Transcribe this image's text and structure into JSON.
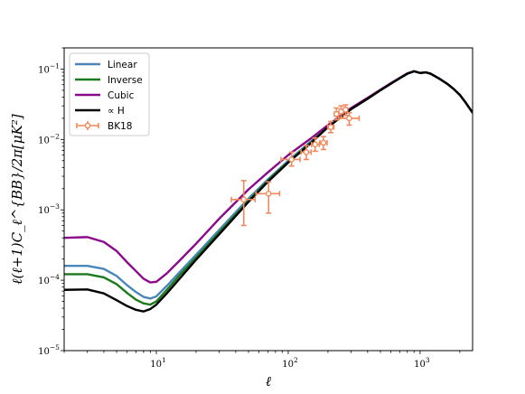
{
  "chart_data": {
    "type": "line",
    "title": "",
    "xlabel": "ℓ",
    "ylabel": "ℓ(ℓ+1)C_ℓ^{BB}/2π[μK²]",
    "xscale": "log",
    "yscale": "log",
    "xlim": [
      2,
      2500
    ],
    "ylim": [
      1e-05,
      0.2
    ],
    "grid": false,
    "legend_placement": "top-left",
    "x_ticks": [
      {
        "value": 10,
        "base": "10",
        "exp": "1"
      },
      {
        "value": 100,
        "base": "10",
        "exp": "2"
      },
      {
        "value": 1000,
        "base": "10",
        "exp": "3"
      }
    ],
    "y_ticks": [
      {
        "value": 1e-05,
        "base": "10",
        "exp": "−5"
      },
      {
        "value": 0.0001,
        "base": "10",
        "exp": "−4"
      },
      {
        "value": 0.001,
        "base": "10",
        "exp": "−3"
      },
      {
        "value": 0.01,
        "base": "10",
        "exp": "−2"
      },
      {
        "value": 0.1,
        "base": "10",
        "exp": "−1"
      }
    ],
    "series": [
      {
        "name": "Linear",
        "color": "#4a86b9",
        "points": [
          [
            2,
            0.00016
          ],
          [
            3,
            0.00016
          ],
          [
            4,
            0.000145
          ],
          [
            5,
            0.000115
          ],
          [
            6,
            8.5e-05
          ],
          [
            7,
            6.8e-05
          ],
          [
            8,
            5.8e-05
          ],
          [
            9,
            5.5e-05
          ],
          [
            10,
            5.9e-05
          ],
          [
            12,
            8.3e-05
          ],
          [
            15,
            0.00013
          ],
          [
            20,
            0.00023
          ],
          [
            30,
            0.00052
          ],
          [
            50,
            0.00145
          ],
          [
            70,
            0.0027
          ],
          [
            100,
            0.005
          ],
          [
            150,
            0.0095
          ],
          [
            200,
            0.015
          ],
          [
            300,
            0.027
          ],
          [
            400,
            0.038
          ],
          [
            500,
            0.05
          ],
          [
            600,
            0.062
          ],
          [
            700,
            0.074
          ],
          [
            800,
            0.086
          ],
          [
            900,
            0.093
          ],
          [
            1000,
            0.088
          ],
          [
            1100,
            0.09
          ],
          [
            1200,
            0.086
          ],
          [
            1400,
            0.073
          ],
          [
            1600,
            0.062
          ],
          [
            1800,
            0.052
          ],
          [
            2000,
            0.043
          ],
          [
            2200,
            0.034
          ],
          [
            2500,
            0.024
          ]
        ]
      },
      {
        "name": "Inverse",
        "color": "#1b7a1b",
        "points": [
          [
            2,
            0.000122
          ],
          [
            3,
            0.000122
          ],
          [
            4,
            0.00011
          ],
          [
            5,
            8.8e-05
          ],
          [
            6,
            6.6e-05
          ],
          [
            7,
            5.3e-05
          ],
          [
            8,
            4.7e-05
          ],
          [
            9,
            4.5e-05
          ],
          [
            10,
            5e-05
          ],
          [
            12,
            7.3e-05
          ],
          [
            15,
            0.000118
          ],
          [
            20,
            0.00021
          ],
          [
            30,
            0.00048
          ],
          [
            50,
            0.00135
          ],
          [
            70,
            0.0026
          ],
          [
            100,
            0.0048
          ],
          [
            150,
            0.0092
          ],
          [
            200,
            0.015
          ],
          [
            300,
            0.027
          ],
          [
            400,
            0.038
          ],
          [
            500,
            0.05
          ],
          [
            600,
            0.062
          ],
          [
            700,
            0.074
          ],
          [
            800,
            0.086
          ],
          [
            900,
            0.093
          ],
          [
            1000,
            0.088
          ],
          [
            1100,
            0.09
          ],
          [
            1200,
            0.086
          ],
          [
            1400,
            0.073
          ],
          [
            1600,
            0.062
          ],
          [
            1800,
            0.052
          ],
          [
            2000,
            0.043
          ],
          [
            2200,
            0.034
          ],
          [
            2500,
            0.024
          ]
        ]
      },
      {
        "name": "Cubic",
        "color": "#8b0a8b",
        "points": [
          [
            2,
            0.0004
          ],
          [
            3,
            0.00041
          ],
          [
            4,
            0.00035
          ],
          [
            5,
            0.00026
          ],
          [
            6,
            0.00018
          ],
          [
            7,
            0.000135
          ],
          [
            8,
            0.000105
          ],
          [
            9,
            9.3e-05
          ],
          [
            10,
            9.5e-05
          ],
          [
            12,
            0.000125
          ],
          [
            15,
            0.00019
          ],
          [
            20,
            0.00033
          ],
          [
            30,
            0.00075
          ],
          [
            50,
            0.00195
          ],
          [
            70,
            0.0034
          ],
          [
            100,
            0.006
          ],
          [
            150,
            0.0105
          ],
          [
            200,
            0.016
          ],
          [
            300,
            0.028
          ],
          [
            400,
            0.039
          ],
          [
            500,
            0.051
          ],
          [
            600,
            0.063
          ],
          [
            700,
            0.075
          ],
          [
            800,
            0.087
          ],
          [
            900,
            0.093
          ],
          [
            1000,
            0.088
          ],
          [
            1100,
            0.09
          ],
          [
            1200,
            0.086
          ],
          [
            1400,
            0.073
          ],
          [
            1600,
            0.062
          ],
          [
            1800,
            0.052
          ],
          [
            2000,
            0.043
          ],
          [
            2200,
            0.034
          ],
          [
            2500,
            0.024
          ]
        ]
      },
      {
        "name": "∝ H",
        "color": "#000000",
        "points": [
          [
            2,
            7.3e-05
          ],
          [
            3,
            7.4e-05
          ],
          [
            4,
            6.5e-05
          ],
          [
            5,
            5.2e-05
          ],
          [
            6,
            4.3e-05
          ],
          [
            7,
            3.8e-05
          ],
          [
            8,
            3.6e-05
          ],
          [
            9,
            3.9e-05
          ],
          [
            10,
            4.5e-05
          ],
          [
            12,
            6.5e-05
          ],
          [
            15,
            0.000105
          ],
          [
            20,
            0.000195
          ],
          [
            30,
            0.00045
          ],
          [
            50,
            0.0013
          ],
          [
            70,
            0.0025
          ],
          [
            100,
            0.0047
          ],
          [
            150,
            0.009
          ],
          [
            200,
            0.015
          ],
          [
            300,
            0.027
          ],
          [
            400,
            0.038
          ],
          [
            500,
            0.05
          ],
          [
            600,
            0.062
          ],
          [
            700,
            0.074
          ],
          [
            800,
            0.086
          ],
          [
            900,
            0.093
          ],
          [
            1000,
            0.088
          ],
          [
            1100,
            0.09
          ],
          [
            1200,
            0.086
          ],
          [
            1400,
            0.073
          ],
          [
            1600,
            0.062
          ],
          [
            1800,
            0.052
          ],
          [
            2000,
            0.043
          ],
          [
            2200,
            0.034
          ],
          [
            2500,
            0.024
          ]
        ]
      }
    ],
    "errorbar_series": {
      "name": "BK18",
      "color": "#f08a5d",
      "points": [
        {
          "x": 46,
          "y": 0.0014,
          "xlo": 37,
          "xhi": 56,
          "ylo": 0.0006,
          "yhi": 0.0026
        },
        {
          "x": 71,
          "y": 0.0017,
          "xlo": 57,
          "xhi": 86,
          "ylo": 0.0009,
          "yhi": 0.0025
        },
        {
          "x": 106,
          "y": 0.0052,
          "xlo": 88,
          "xhi": 123,
          "ylo": 0.0042,
          "yhi": 0.0066
        },
        {
          "x": 137,
          "y": 0.0066,
          "xlo": 125,
          "xhi": 149,
          "ylo": 0.0052,
          "yhi": 0.0082
        },
        {
          "x": 160,
          "y": 0.0085,
          "xlo": 150,
          "xhi": 172,
          "ylo": 0.0068,
          "yhi": 0.0105
        },
        {
          "x": 185,
          "y": 0.009,
          "xlo": 174,
          "xhi": 197,
          "ylo": 0.0072,
          "yhi": 0.011
        },
        {
          "x": 210,
          "y": 0.015,
          "xlo": 199,
          "xhi": 222,
          "ylo": 0.0125,
          "yhi": 0.018
        },
        {
          "x": 232,
          "y": 0.023,
          "xlo": 224,
          "xhi": 241,
          "ylo": 0.019,
          "yhi": 0.028
        },
        {
          "x": 252,
          "y": 0.025,
          "xlo": 244,
          "xhi": 262,
          "ylo": 0.0205,
          "yhi": 0.03
        },
        {
          "x": 272,
          "y": 0.0265,
          "xlo": 264,
          "xhi": 282,
          "ylo": 0.022,
          "yhi": 0.031
        },
        {
          "x": 290,
          "y": 0.02,
          "xlo": 240,
          "xhi": 345,
          "ylo": 0.016,
          "yhi": 0.024
        }
      ]
    }
  }
}
